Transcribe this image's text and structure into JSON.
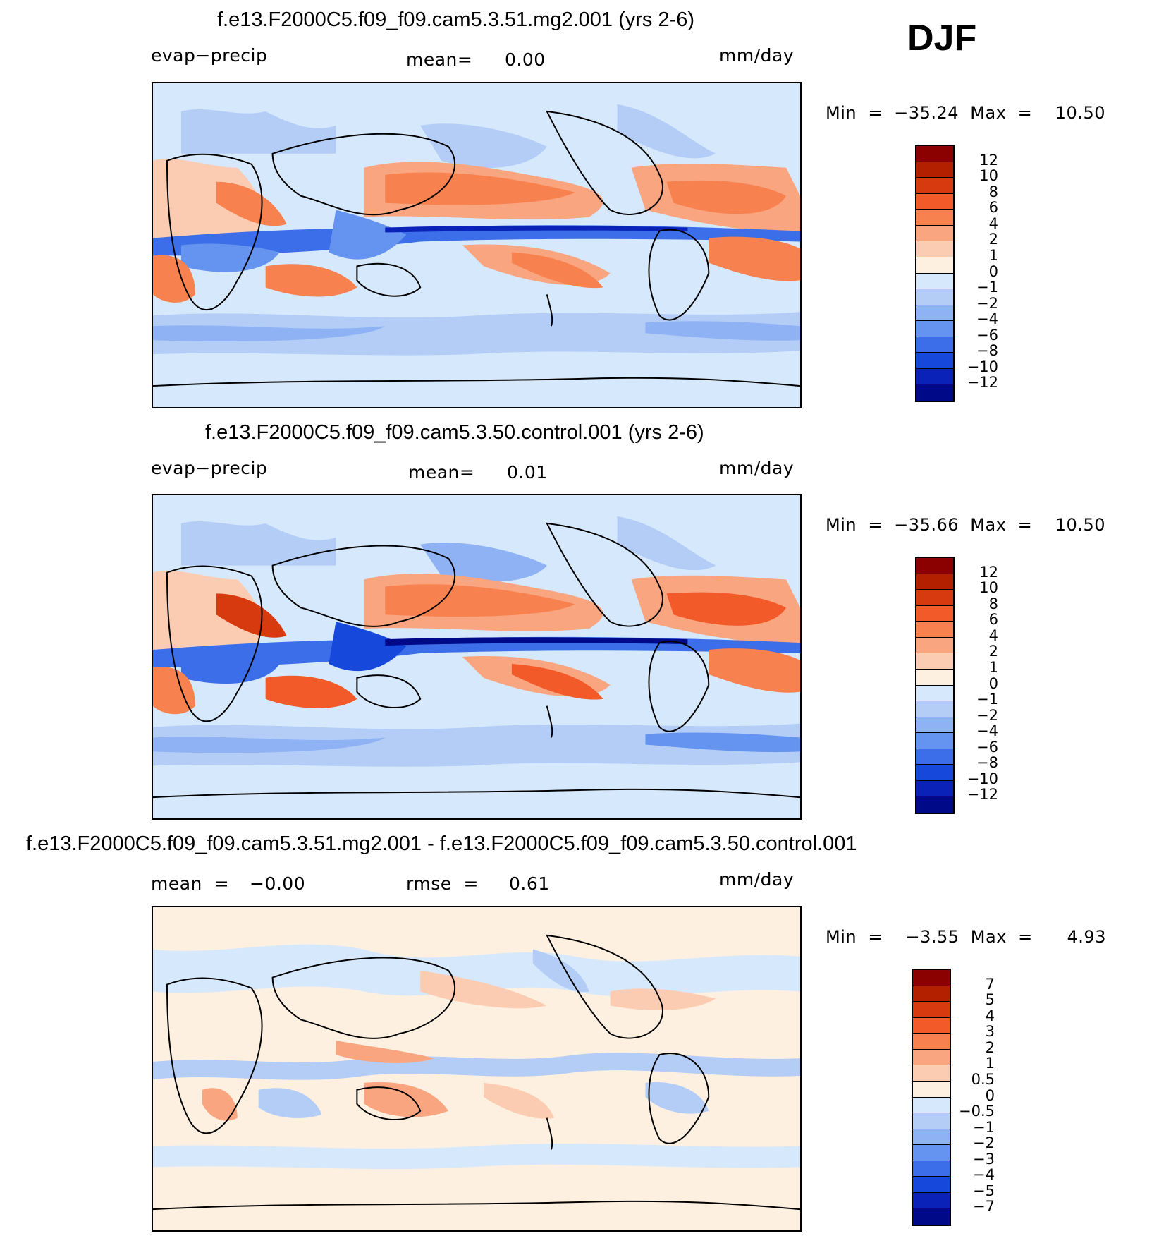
{
  "season": "DJF",
  "panels": [
    {
      "title": "f.e13.F2000C5.f09_f09.cam5.3.51.mg2.001 (yrs 2-6)",
      "left_label": "evap−precip",
      "center_label": "mean=",
      "center_value": "0.00",
      "units": "mm/day",
      "min_label": "Min  =  −35.24  Max  =    10.50",
      "colorbar_labels": [
        "12",
        "10",
        "8",
        "6",
        "4",
        "2",
        "1",
        "0",
        "−1",
        "−2",
        "−4",
        "−6",
        "−8",
        "−10",
        "−12"
      ]
    },
    {
      "title": "f.e13.F2000C5.f09_f09.cam5.3.50.control.001 (yrs 2-6)",
      "left_label": "evap−precip",
      "center_label": "mean=",
      "center_value": "0.01",
      "units": "mm/day",
      "min_label": "Min  =  −35.66  Max  =    10.50",
      "colorbar_labels": [
        "12",
        "10",
        "8",
        "6",
        "4",
        "2",
        "1",
        "0",
        "−1",
        "−2",
        "−4",
        "−6",
        "−8",
        "−10",
        "−12"
      ]
    },
    {
      "title": "f.e13.F2000C5.f09_f09.cam5.3.51.mg2.001 - f.e13.F2000C5.f09_f09.cam5.3.50.control.001",
      "left_label": "mean  =",
      "left_value": "−0.00",
      "center_label": "rmse  =",
      "center_value": "0.61",
      "units": "mm/day",
      "min_label": "Min  =    −3.55  Max  =      4.93",
      "colorbar_labels": [
        "7",
        "5",
        "4",
        "3",
        "2",
        "1",
        "0.5",
        "0",
        "−0.5",
        "−1",
        "−2",
        "−3",
        "−4",
        "−5",
        "−7"
      ]
    }
  ],
  "colors": {
    "abs_scale": [
      "#8b0000",
      "#b22000",
      "#d83a10",
      "#f25a2a",
      "#f7814f",
      "#f9a57f",
      "#fcccb2",
      "#fef0e0",
      "#d6e8fb",
      "#b3cdf7",
      "#8fb2f5",
      "#6593f0",
      "#3b6ee8",
      "#1748dc",
      "#0a22b8",
      "#000a88"
    ],
    "diff_scale": [
      "#8b0000",
      "#b22000",
      "#d83a10",
      "#f25a2a",
      "#f7814f",
      "#f9a57f",
      "#fcccb2",
      "#fef0e0",
      "#d6e8fb",
      "#b3cdf7",
      "#8fb2f5",
      "#6593f0",
      "#3b6ee8",
      "#1748dc",
      "#0a22b8",
      "#000a88"
    ]
  },
  "chart_data": [
    {
      "type": "heatmap",
      "title": "f.e13.F2000C5.f09_f09.cam5.3.51.mg2.001 (yrs 2-6)",
      "variable": "evap−precip",
      "units": "mm/day",
      "mean": 0.0,
      "min": -35.24,
      "max": 10.5,
      "contour_levels": [
        -12,
        -10,
        -8,
        -6,
        -4,
        -2,
        -1,
        0,
        1,
        2,
        4,
        6,
        8,
        10,
        12
      ]
    },
    {
      "type": "heatmap",
      "title": "f.e13.F2000C5.f09_f09.cam5.3.50.control.001 (yrs 2-6)",
      "variable": "evap−precip",
      "units": "mm/day",
      "mean": 0.01,
      "min": -35.66,
      "max": 10.5,
      "contour_levels": [
        -12,
        -10,
        -8,
        -6,
        -4,
        -2,
        -1,
        0,
        1,
        2,
        4,
        6,
        8,
        10,
        12
      ]
    },
    {
      "type": "heatmap",
      "title": "f.e13.F2000C5.f09_f09.cam5.3.51.mg2.001 - f.e13.F2000C5.f09_f09.cam5.3.50.control.001",
      "units": "mm/day",
      "mean": -0.0,
      "rmse": 0.61,
      "min": -3.55,
      "max": 4.93,
      "contour_levels": [
        -7,
        -5,
        -4,
        -3,
        -2,
        -1,
        -0.5,
        0,
        0.5,
        1,
        2,
        3,
        4,
        5,
        7
      ]
    }
  ]
}
